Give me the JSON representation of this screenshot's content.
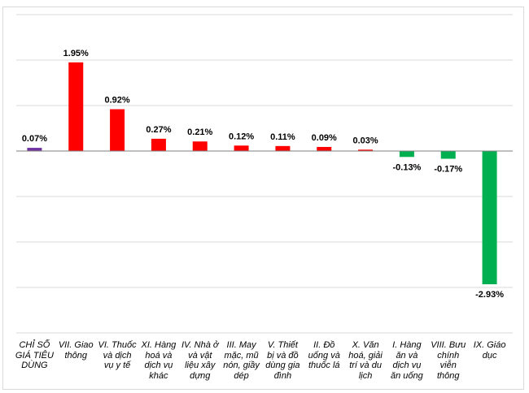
{
  "chart_data": {
    "type": "bar",
    "title": "",
    "xlabel": "",
    "ylabel": "",
    "ylim": [
      -4,
      3
    ],
    "grid": true,
    "y_axis_labels_shown": false,
    "categories": [
      "CHỈ SỐ GIÁ TIÊU DÙNG",
      "VII. Giao thông",
      "VI. Thuốc và dịch vụ y tế",
      "XI. Hàng hoá và dịch vụ khác",
      "IV. Nhà ở và vật liệu xây dựng",
      "III. May mặc, mũ nón, giầy dép",
      "V. Thiết bị và đồ dùng gia đình",
      "II. Đồ uống và thuốc lá",
      "X. Văn hoá, giải trí và du lịch",
      "I. Hàng ăn và dịch vụ ăn uống",
      "VIII. Bưu chính viễn thông",
      "IX. Giáo dục"
    ],
    "values": [
      0.07,
      1.95,
      0.92,
      0.27,
      0.21,
      0.12,
      0.11,
      0.09,
      0.03,
      -0.13,
      -0.17,
      -2.93
    ],
    "data_labels": [
      "0.07%",
      "1.95%",
      "0.92%",
      "0.27%",
      "0.21%",
      "0.12%",
      "0.11%",
      "0.09%",
      "0.03%",
      "-0.13%",
      "-0.17%",
      "-2.93%"
    ],
    "colors": {
      "index": "#7030A0",
      "positive": "#FF0000",
      "negative": "#00B050",
      "grid": "#d9d9d9",
      "axis": "#7f7f7f"
    }
  }
}
